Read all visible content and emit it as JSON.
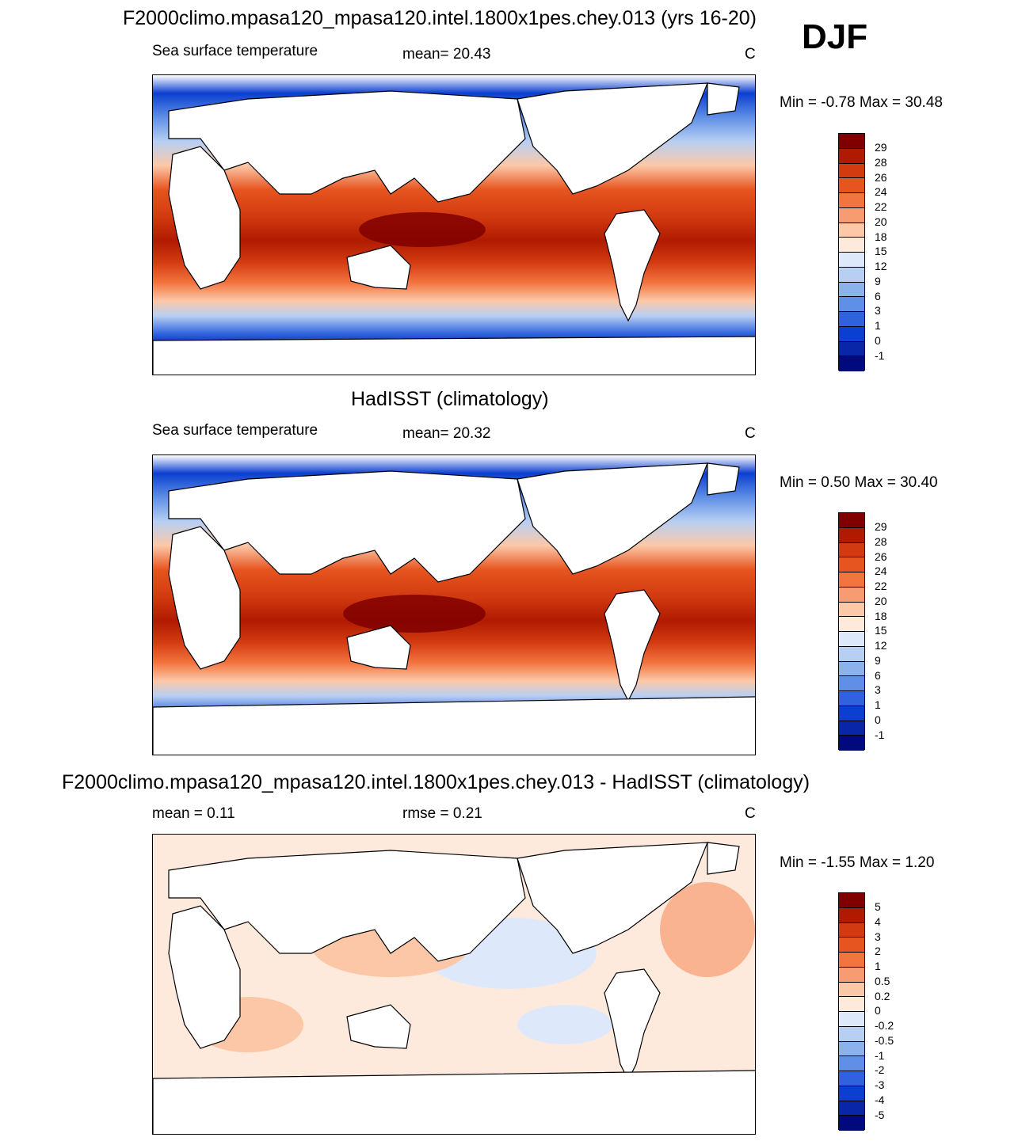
{
  "season": "DJF",
  "panels": [
    {
      "title": "F2000climo.mpasa120_mpasa120.intel.1800x1pes.chey.013 (yrs 16-20)",
      "left_label": "Sea surface temperature",
      "center_label": "mean=  20.43",
      "units": "C",
      "minmax": "Min =  -0.78 Max =  30.48",
      "colorbar": [
        "29",
        "28",
        "26",
        "24",
        "22",
        "20",
        "18",
        "15",
        "12",
        "9",
        "6",
        "3",
        "1",
        "0",
        "-1"
      ]
    },
    {
      "title": "HadISST (climatology)",
      "left_label": "Sea surface temperature",
      "center_label": "mean=  20.32",
      "units": "C",
      "minmax": "Min =   0.50 Max =  30.40",
      "colorbar": [
        "29",
        "28",
        "26",
        "24",
        "22",
        "20",
        "18",
        "15",
        "12",
        "9",
        "6",
        "3",
        "1",
        "0",
        "-1"
      ]
    },
    {
      "title": "F2000climo.mpasa120_mpasa120.intel.1800x1pes.chey.013 - HadISST (climatology)",
      "left_label": "mean =   0.11",
      "center_label": "rmse =   0.21",
      "units": "C",
      "minmax": "Min =  -1.55 Max =   1.20",
      "colorbar": [
        "5",
        "4",
        "3",
        "2",
        "1",
        "0.5",
        "0.2",
        "0",
        "-0.2",
        "-0.5",
        "-1",
        "-2",
        "-3",
        "-4",
        "-5"
      ]
    }
  ],
  "colors": {
    "abs_scale": [
      "#800000",
      "#b01a00",
      "#d23a10",
      "#e6551f",
      "#f2743f",
      "#f79b70",
      "#fcc8a8",
      "#feeadc",
      "#dde9fb",
      "#b7cff3",
      "#8cb2ec",
      "#5f8fe6",
      "#2f63dd",
      "#0b3fcf",
      "#0925a8",
      "#000a7d"
    ],
    "diff_scale": [
      "#800000",
      "#b01a00",
      "#d23a10",
      "#e6551f",
      "#f2743f",
      "#f79b70",
      "#fbc7a6",
      "#feeadc",
      "#dde9fb",
      "#b7cff3",
      "#8cb2ec",
      "#5f8fe6",
      "#2f63dd",
      "#0b3fcf",
      "#0925a8",
      "#000a7d"
    ],
    "land": "#ffffff",
    "coast": "#000000"
  }
}
